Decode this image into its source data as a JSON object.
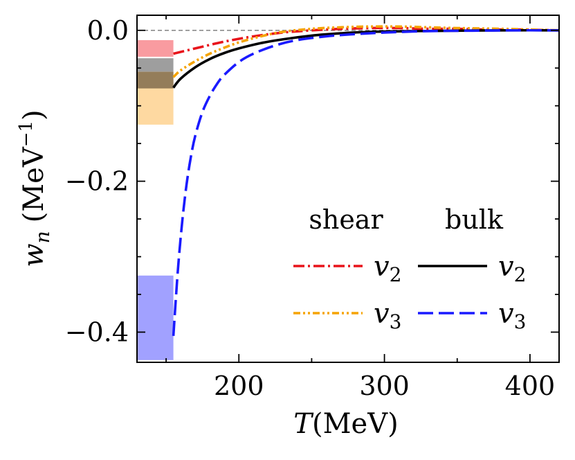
{
  "chart_data": {
    "type": "line",
    "title": "",
    "xlabel_symbol": "T",
    "xlabel_unit": "(MeV)",
    "ylabel_symbol": "w",
    "ylabel_subscript": "n",
    "ylabel_unit_open": "(MeV",
    "ylabel_unit_exp": "−1",
    "ylabel_unit_close": ")",
    "xlim": [
      130,
      420
    ],
    "ylim": [
      -0.44,
      0.02
    ],
    "x_ticks": [
      200,
      300,
      400
    ],
    "x_tick_labels": [
      "200",
      "300",
      "400"
    ],
    "y_ticks": [
      0.0,
      -0.2,
      -0.4
    ],
    "y_tick_labels": [
      "0.0",
      "−0.2",
      "−0.4"
    ],
    "zero_line": true,
    "legend": {
      "position": "center-right",
      "headers": [
        "shear",
        "bulk"
      ],
      "entries": [
        {
          "group": "shear",
          "label_base": "v",
          "label_sub": "2",
          "series": "shear_v2"
        },
        {
          "group": "bulk",
          "label_base": "v",
          "label_sub": "2",
          "series": "bulk_v2"
        },
        {
          "group": "shear",
          "label_base": "v",
          "label_sub": "3",
          "series": "shear_v3"
        },
        {
          "group": "bulk",
          "label_base": "v",
          "label_sub": "3",
          "series": "bulk_v3"
        }
      ]
    },
    "series": [
      {
        "id": "shear_v2",
        "name": "shear v2",
        "color": "#e8141b",
        "dash": "dashdot",
        "x": [
          155,
          170,
          190,
          210,
          230,
          250,
          270,
          290,
          310,
          330,
          350,
          370,
          390,
          420
        ],
        "y": [
          -0.031,
          -0.024,
          -0.015,
          -0.008,
          -0.003,
          0.0,
          0.002,
          0.003,
          0.003,
          0.002,
          0.002,
          0.001,
          0.001,
          0.0
        ]
      },
      {
        "id": "shear_v3",
        "name": "shear v3",
        "color": "#f5a300",
        "dash": "dashdotdot",
        "x": [
          155,
          160,
          170,
          180,
          190,
          200,
          215,
          230,
          250,
          270,
          290,
          310,
          330,
          350,
          380,
          420
        ],
        "y": [
          -0.062,
          -0.053,
          -0.041,
          -0.031,
          -0.023,
          -0.016,
          -0.008,
          -0.002,
          0.002,
          0.004,
          0.005,
          0.005,
          0.004,
          0.003,
          0.002,
          0.0
        ]
      },
      {
        "id": "bulk_v2",
        "name": "bulk v2",
        "color": "#000000",
        "dash": "solid",
        "x": [
          155,
          160,
          170,
          180,
          190,
          200,
          215,
          230,
          250,
          270,
          290,
          320,
          350,
          380,
          420
        ],
        "y": [
          -0.076,
          -0.064,
          -0.049,
          -0.038,
          -0.03,
          -0.024,
          -0.017,
          -0.012,
          -0.007,
          -0.004,
          -0.002,
          -0.001,
          -0.0005,
          0.0,
          0.0
        ]
      },
      {
        "id": "bulk_v3",
        "name": "bulk v3",
        "color": "#1a1aff",
        "dash": "longdash",
        "x": [
          155,
          158,
          161,
          164,
          167,
          170,
          175,
          180,
          185,
          190,
          200,
          210,
          225,
          240,
          260,
          280,
          300,
          330,
          360,
          390,
          420
        ],
        "y": [
          -0.405,
          -0.32,
          -0.255,
          -0.205,
          -0.168,
          -0.14,
          -0.108,
          -0.087,
          -0.071,
          -0.059,
          -0.042,
          -0.031,
          -0.02,
          -0.013,
          -0.008,
          -0.005,
          -0.003,
          -0.001,
          -0.0005,
          0.0,
          0.0
        ]
      }
    ],
    "bands": [
      {
        "name": "shear v2 data range",
        "color": "#f99ba0",
        "x0": 130,
        "x1": 155,
        "ymin": -0.035,
        "ymax": -0.013
      },
      {
        "name": "bulk v2 data range",
        "color": "#9e9e9e",
        "x0": 130,
        "x1": 155,
        "ymin": -0.077,
        "ymax": -0.037
      },
      {
        "name": "shear v3 data range",
        "color": "#fed9a1",
        "x0": 130,
        "x1": 155,
        "ymin": -0.125,
        "ymax": -0.055
      },
      {
        "name": "bulk v3 data range",
        "color": "#a1a1ff",
        "x0": 130,
        "x1": 155,
        "ymin": -0.437,
        "ymax": -0.325
      }
    ],
    "band_overlap_color": "#947d5a"
  }
}
